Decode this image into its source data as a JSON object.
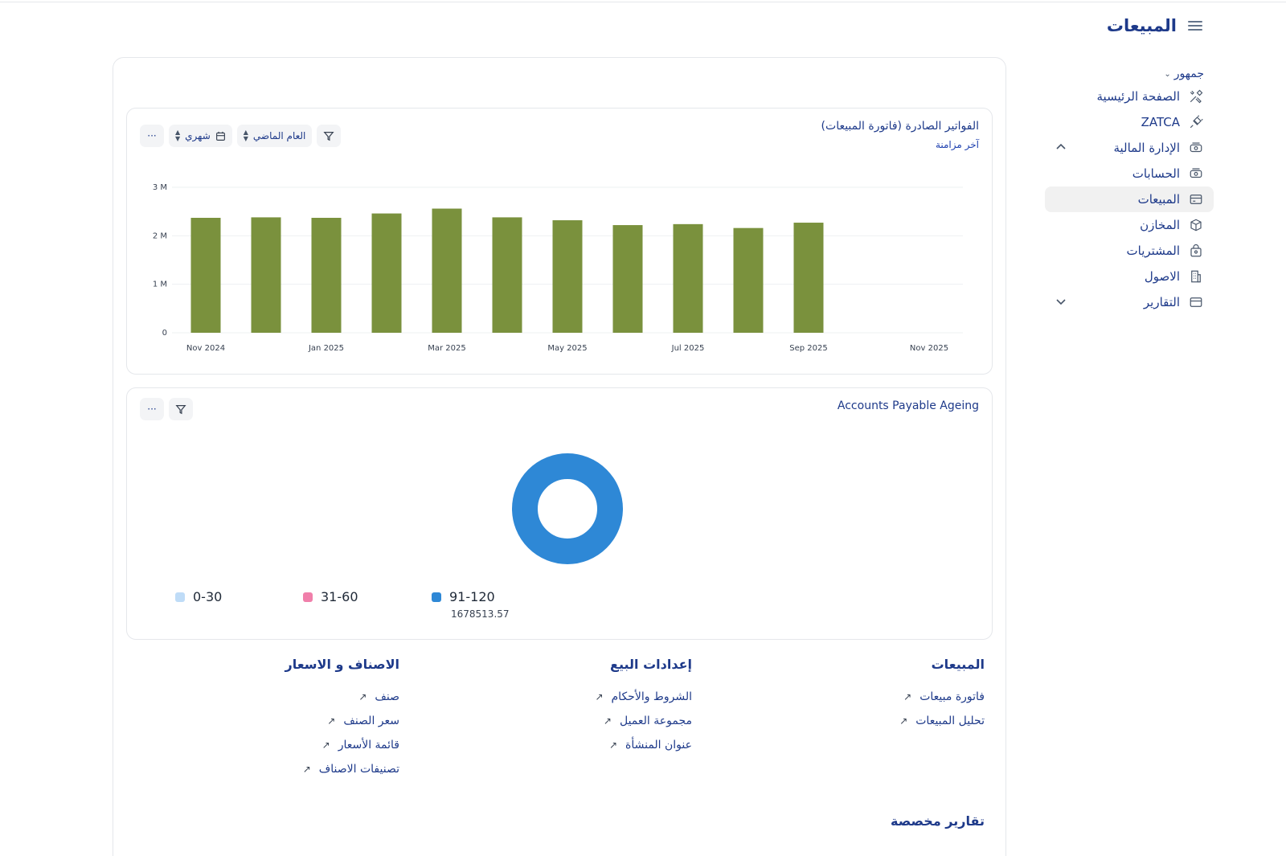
{
  "header": {
    "title": "المبيعات"
  },
  "sidebar": {
    "group_label": "جمهور",
    "items": [
      {
        "label": "الصفحة الرئيسية",
        "icon": "tools-icon"
      },
      {
        "label": "ZATCA",
        "icon": "plug-icon"
      },
      {
        "label": "الإدارة المالية",
        "icon": "money-icon",
        "expanded": true
      },
      {
        "label": "الحسابات",
        "icon": "money-icon"
      },
      {
        "label": "المبيعات",
        "icon": "card-icon",
        "active": true
      },
      {
        "label": "المخازن",
        "icon": "box-icon"
      },
      {
        "label": "المشتريات",
        "icon": "bag-icon"
      },
      {
        "label": "الاصول",
        "icon": "building-icon"
      },
      {
        "label": "التقارير",
        "icon": "card-icon",
        "expanded": false
      }
    ]
  },
  "invoices_widget": {
    "title": "الفواتير الصادرة (فاتورة المبيعات)",
    "subtitle": "آخر مزامنة",
    "period_select": "العام الماضي",
    "interval_select": "شهري",
    "more_label": "···"
  },
  "chart_data": {
    "type": "bar",
    "x_tick_labels": [
      "Nov 2024",
      "Jan 2025",
      "Mar 2025",
      "May 2025",
      "Jul 2025",
      "Sep 2025",
      "Nov 2025"
    ],
    "y_tick_labels": [
      "0",
      "1 M",
      "2 M",
      "3 M"
    ],
    "ylim": [
      0,
      3000000
    ],
    "categories": [
      "Nov 2024",
      "Dec 2024",
      "Jan 2025",
      "Feb 2025",
      "Mar 2025",
      "Apr 2025",
      "May 2025",
      "Jun 2025",
      "Jul 2025",
      "Aug 2025",
      "Sep 2025",
      "Oct 2025",
      "Nov 2025"
    ],
    "values": [
      2370000,
      2380000,
      2370000,
      2460000,
      2560000,
      2380000,
      2320000,
      2220000,
      2240000,
      2160000,
      2270000,
      null,
      null
    ],
    "bar_color": "#7a913d",
    "grid": true
  },
  "ageing_widget": {
    "title": "Accounts Payable Ageing",
    "more_label": "···",
    "donut": {
      "color": "#2e88d6",
      "total": 1678513.57
    },
    "legend": [
      {
        "label": "0-30",
        "color": "#bfdcf7"
      },
      {
        "label": "31-60",
        "color": "#f07faa"
      },
      {
        "label": "91-120",
        "color": "#2e88d6",
        "value": "1678513.57"
      }
    ]
  },
  "links": {
    "sales": {
      "title": "المبيعات",
      "items": [
        "فاتورة مبيعات",
        "تحليل المبيعات"
      ]
    },
    "selling_settings": {
      "title": "إعدادات البيع",
      "items": [
        "الشروط والأحكام",
        "مجموعة العميل",
        "عنوان المنشأة"
      ]
    },
    "items_pricing": {
      "title": "الاصناف و الاسعار",
      "items": [
        "صنف",
        "سعر الصنف",
        "قائمة الأسعار",
        "تصنيفات الاصناف"
      ]
    },
    "arrow": "↗"
  },
  "custom_reports": {
    "title": "تقارير مخصصة"
  }
}
